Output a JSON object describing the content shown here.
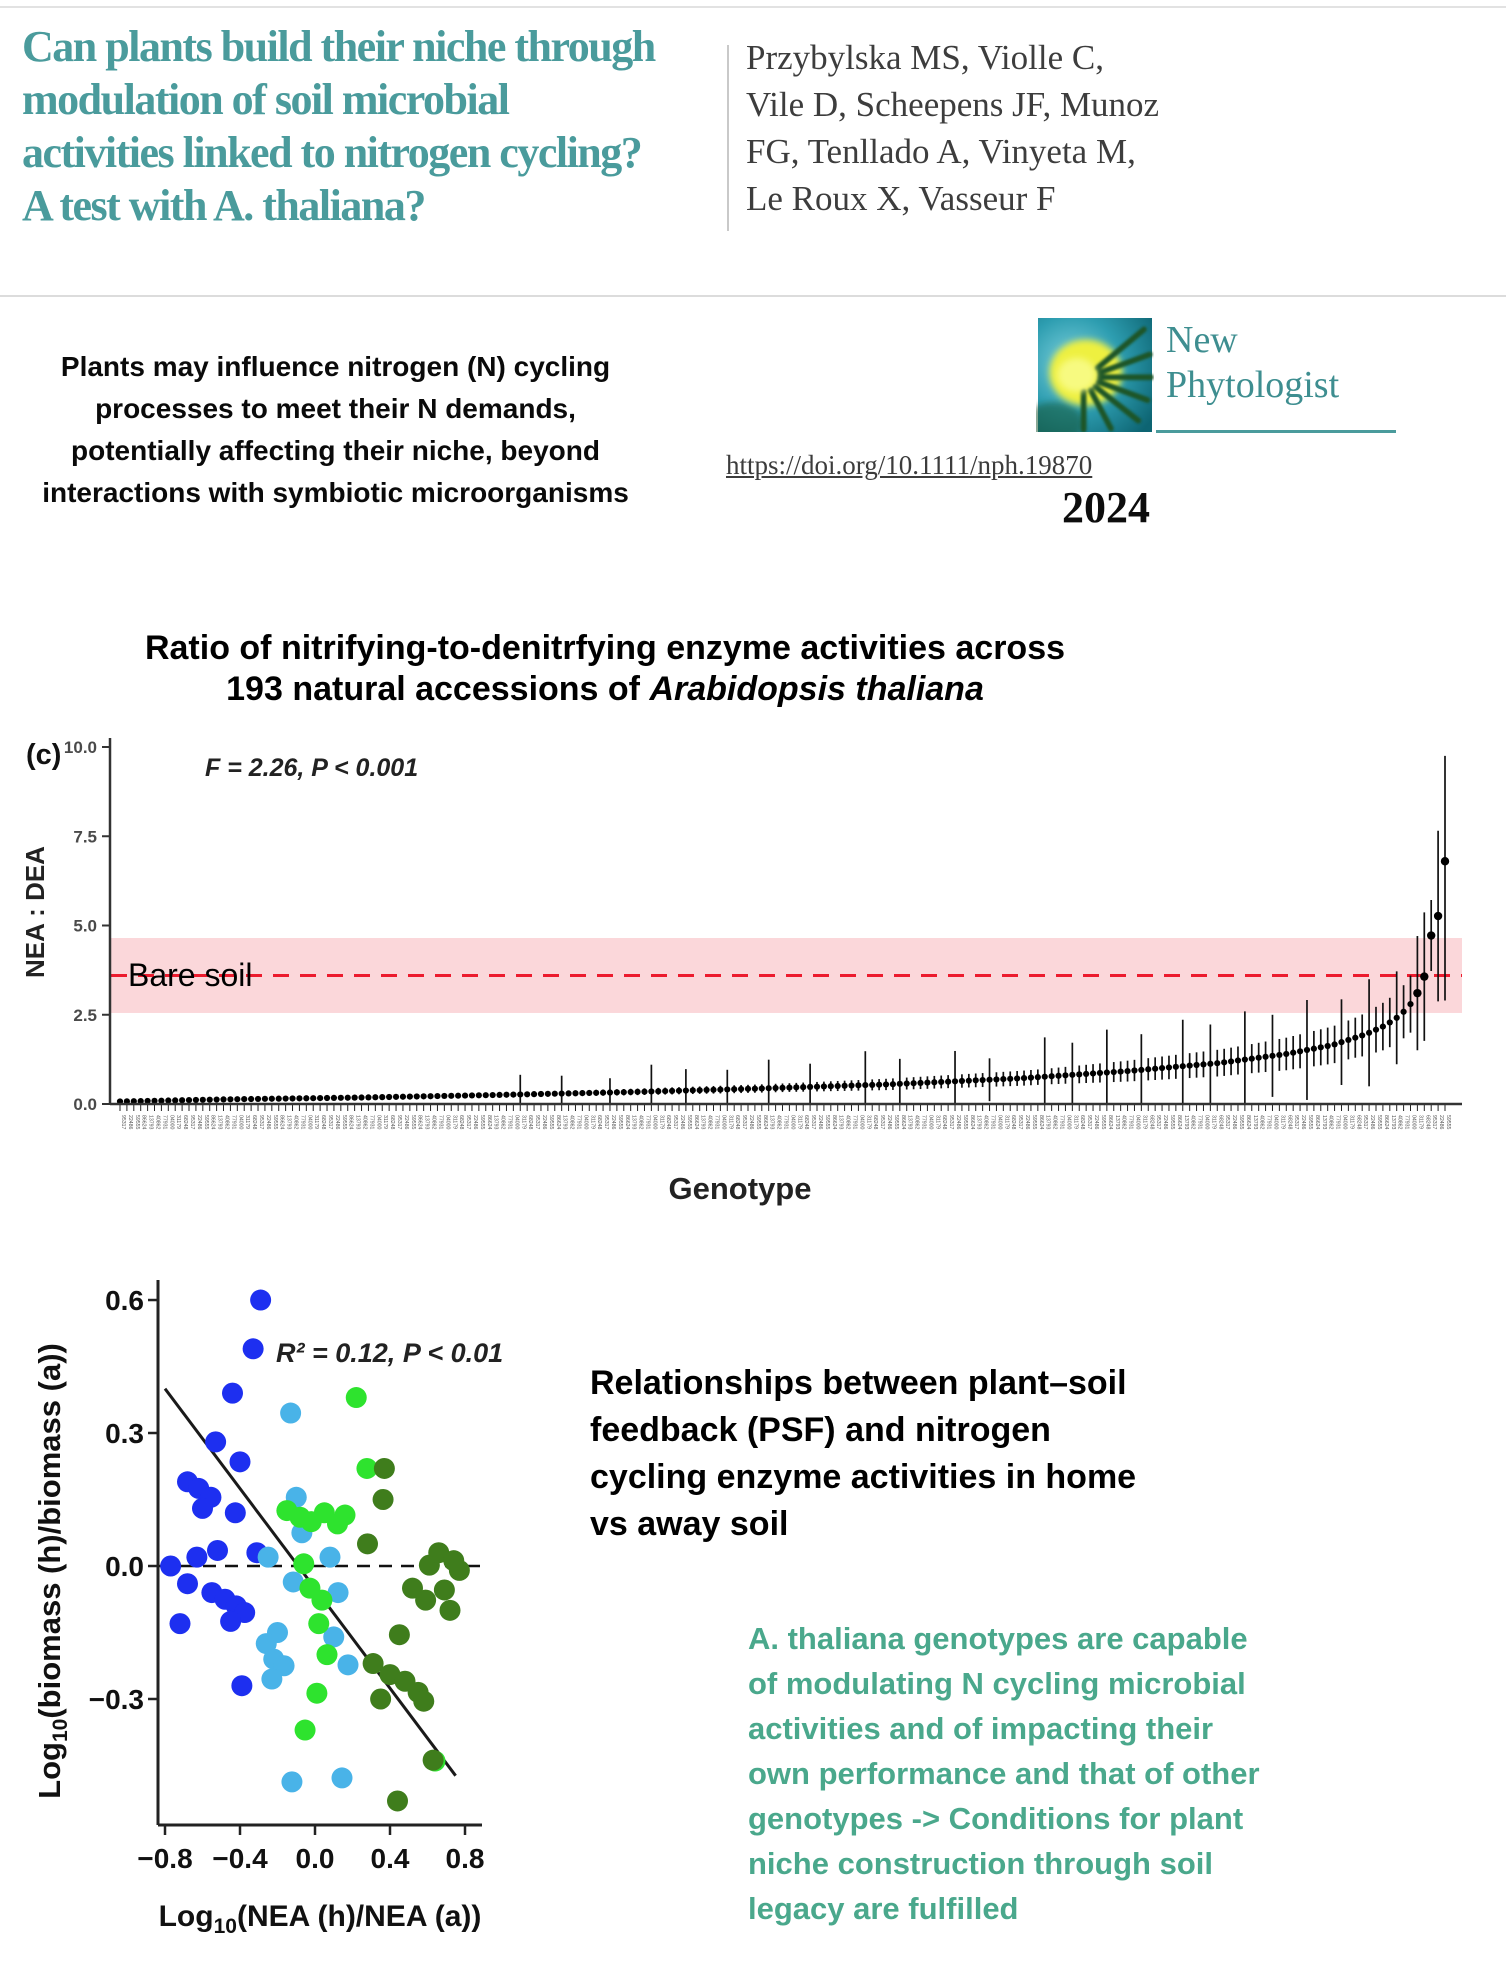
{
  "header": {
    "title_lines": [
      "Can plants build their niche through",
      "modulation of soil microbial",
      "activities linked to nitrogen cycling?",
      "A test with A. thaliana?"
    ],
    "title_color": "#4a9b9c",
    "author_lines": [
      "Przybylska MS, Violle C,",
      "Vile D, Scheepens JF, Munoz",
      "FG, Tenllado A, Vinyeta M,",
      "Le Roux X, Vasseur F"
    ]
  },
  "summary": {
    "lines": [
      "Plants may influence nitrogen (N) cycling",
      "processes to meet their N demands,",
      "potentially affecting their niche, beyond",
      "interactions with symbiotic microorganisms"
    ]
  },
  "journal": {
    "name_line1": "New",
    "name_line2": "Phytologist",
    "doi": "https://doi.org/10.1111/nph.19870",
    "year": "2024",
    "accent_color": "#3e8e90"
  },
  "right_text": {
    "heading_lines": [
      "Relationships between plant–soil",
      "feedback (PSF) and nitrogen",
      "cycling enzyme activities in home",
      "vs away soil"
    ]
  },
  "conclusion": {
    "color": "#4aa88c",
    "lines": [
      "A. thaliana genotypes are capable",
      "of modulating N cycling microbial",
      "activities and of impacting their",
      "own performance and that of other",
      "genotypes -> Conditions for plant",
      "niche construction through soil",
      "legacy are fulfilled"
    ]
  },
  "chart_data": [
    {
      "type": "scatter",
      "panel_label": "(c)",
      "title_line1": "Ratio of nitrifying-to-denitrfying enzyme activities across",
      "title_line2_prefix": "193 natural accessions of ",
      "title_line2_italic": "Arabidopsis thaliana",
      "stats": "F = 2.26, P < 0.001",
      "xlabel": "Genotype",
      "ylabel": "NEA : DEA",
      "ylim": [
        0,
        10
      ],
      "y_tick_values": [
        10,
        7.5,
        5,
        2.5,
        0
      ],
      "y_ticks": [
        "10.0",
        "7.5",
        "5.0",
        "2.5",
        "0.0"
      ],
      "n_points": 193,
      "x_tick_labels_note": "193 genotype ID micro-labels, illegible at this scale",
      "point_color": "#000000",
      "bare_soil": {
        "label": "Bare soil",
        "line_value": 3.6,
        "band": [
          2.55,
          4.65
        ],
        "line_color": "#ec1b2e",
        "band_color": "#fbd7da"
      },
      "value_anchors": [
        [
          0,
          0.07
        ],
        [
          0.08,
          0.13
        ],
        [
          0.18,
          0.18
        ],
        [
          0.28,
          0.25
        ],
        [
          0.38,
          0.33
        ],
        [
          0.48,
          0.43
        ],
        [
          0.58,
          0.55
        ],
        [
          0.68,
          0.72
        ],
        [
          0.76,
          0.92
        ],
        [
          0.83,
          1.15
        ],
        [
          0.88,
          1.4
        ],
        [
          0.915,
          1.65
        ],
        [
          0.94,
          1.95
        ],
        [
          0.955,
          2.2
        ],
        [
          0.965,
          2.45
        ],
        [
          0.972,
          2.7
        ],
        [
          0.978,
          3.0
        ],
        [
          0.983,
          3.45
        ],
        [
          0.9865,
          3.75
        ],
        [
          0.99,
          4.85
        ],
        [
          0.9935,
          5.05
        ],
        [
          0.9965,
          5.55
        ],
        [
          0.999,
          5.75
        ],
        [
          1,
          6.8
        ]
      ],
      "error_anchors": [
        [
          0,
          0.04
        ],
        [
          0.3,
          0.07
        ],
        [
          0.5,
          0.12
        ],
        [
          0.7,
          0.22
        ],
        [
          0.85,
          0.4
        ],
        [
          0.93,
          0.55
        ],
        [
          0.97,
          0.75
        ],
        [
          0.99,
          1.0
        ],
        [
          1,
          3.9
        ]
      ],
      "error_spikes": [
        [
          0.3,
          0.55
        ],
        [
          0.335,
          0.5
        ],
        [
          0.37,
          0.4
        ],
        [
          0.4,
          0.75
        ],
        [
          0.425,
          0.6
        ],
        [
          0.46,
          0.55
        ],
        [
          0.49,
          0.8
        ],
        [
          0.52,
          0.65
        ],
        [
          0.565,
          0.95
        ],
        [
          0.59,
          0.7
        ],
        [
          0.63,
          0.85
        ],
        [
          0.655,
          0.6
        ],
        [
          0.7,
          1.1
        ],
        [
          0.72,
          0.9
        ],
        [
          0.745,
          1.2
        ],
        [
          0.77,
          1.0
        ],
        [
          0.8,
          1.3
        ],
        [
          0.825,
          1.1
        ],
        [
          0.85,
          1.35
        ],
        [
          0.87,
          1.15
        ],
        [
          0.895,
          1.4
        ],
        [
          0.92,
          1.2
        ],
        [
          0.945,
          1.5
        ],
        [
          0.965,
          1.3
        ],
        [
          0.978,
          1.6
        ],
        [
          0.9865,
          1.8
        ],
        [
          1.0,
          3.9
        ]
      ]
    },
    {
      "type": "scatter",
      "stats": "R² = 0.12, P < 0.01",
      "xlabel_parts": [
        "Log",
        "10",
        "(NEA (h)/NEA (a))"
      ],
      "ylabel_parts": [
        "Log",
        "10",
        "(biomass (h)/biomass (a))"
      ],
      "xlim": [
        -0.95,
        0.9
      ],
      "ylim": [
        -0.58,
        0.64
      ],
      "x_tick_values": [
        -0.8,
        -0.4,
        0,
        0.4,
        0.8
      ],
      "x_ticks": [
        "−0.8",
        "−0.4",
        "0.0",
        "0.4",
        "0.8"
      ],
      "y_tick_values": [
        0.6,
        0.3,
        0,
        -0.3
      ],
      "y_ticks": [
        "0.6",
        "0.3",
        "0.0",
        "−0.3"
      ],
      "zero_line": 0,
      "regression_line": {
        "x1": -0.8,
        "y1": 0.4,
        "x2": 0.75,
        "y2": -0.473
      },
      "colors": {
        "blue": "#1d2ff0",
        "lightblue": "#49b3e8",
        "green": "#2ee32e",
        "darkgreen": "#3f7d1c"
      },
      "points": [
        {
          "x": -0.29,
          "y": 0.6,
          "c": "blue"
        },
        {
          "x": -0.33,
          "y": 0.49,
          "c": "blue"
        },
        {
          "x": -0.44,
          "y": 0.39,
          "c": "blue"
        },
        {
          "x": -0.53,
          "y": 0.28,
          "c": "blue"
        },
        {
          "x": -0.4,
          "y": 0.235,
          "c": "blue"
        },
        {
          "x": -0.68,
          "y": 0.19,
          "c": "blue"
        },
        {
          "x": -0.62,
          "y": 0.175,
          "c": "blue"
        },
        {
          "x": -0.555,
          "y": 0.155,
          "c": "blue"
        },
        {
          "x": -0.6,
          "y": 0.13,
          "c": "blue"
        },
        {
          "x": -0.425,
          "y": 0.12,
          "c": "blue"
        },
        {
          "x": -0.52,
          "y": 0.035,
          "c": "blue"
        },
        {
          "x": -0.63,
          "y": 0.02,
          "c": "blue"
        },
        {
          "x": -0.77,
          "y": 0.0,
          "c": "blue"
        },
        {
          "x": -0.68,
          "y": -0.04,
          "c": "blue"
        },
        {
          "x": -0.55,
          "y": -0.06,
          "c": "blue"
        },
        {
          "x": -0.48,
          "y": -0.075,
          "c": "blue"
        },
        {
          "x": -0.42,
          "y": -0.09,
          "c": "blue"
        },
        {
          "x": -0.375,
          "y": -0.105,
          "c": "blue"
        },
        {
          "x": -0.45,
          "y": -0.125,
          "c": "blue"
        },
        {
          "x": -0.72,
          "y": -0.13,
          "c": "blue"
        },
        {
          "x": -0.39,
          "y": -0.27,
          "c": "blue"
        },
        {
          "x": -0.31,
          "y": 0.03,
          "c": "blue"
        },
        {
          "x": -0.13,
          "y": 0.345,
          "c": "lightblue"
        },
        {
          "x": -0.1,
          "y": 0.155,
          "c": "lightblue"
        },
        {
          "x": -0.07,
          "y": 0.075,
          "c": "lightblue"
        },
        {
          "x": -0.25,
          "y": 0.02,
          "c": "lightblue"
        },
        {
          "x": -0.116,
          "y": -0.036,
          "c": "lightblue"
        },
        {
          "x": 0.08,
          "y": 0.02,
          "c": "lightblue"
        },
        {
          "x": 0.123,
          "y": -0.06,
          "c": "lightblue"
        },
        {
          "x": -0.2,
          "y": -0.15,
          "c": "lightblue"
        },
        {
          "x": -0.26,
          "y": -0.175,
          "c": "lightblue"
        },
        {
          "x": -0.22,
          "y": -0.21,
          "c": "lightblue"
        },
        {
          "x": -0.165,
          "y": -0.225,
          "c": "lightblue"
        },
        {
          "x": -0.23,
          "y": -0.255,
          "c": "lightblue"
        },
        {
          "x": 0.176,
          "y": -0.223,
          "c": "lightblue"
        },
        {
          "x": -0.123,
          "y": -0.487,
          "c": "lightblue"
        },
        {
          "x": 0.144,
          "y": -0.478,
          "c": "lightblue"
        },
        {
          "x": 0.1,
          "y": -0.16,
          "c": "lightblue"
        },
        {
          "x": 0.22,
          "y": 0.38,
          "c": "green"
        },
        {
          "x": 0.277,
          "y": 0.22,
          "c": "green"
        },
        {
          "x": -0.15,
          "y": 0.125,
          "c": "green"
        },
        {
          "x": -0.08,
          "y": 0.11,
          "c": "green"
        },
        {
          "x": -0.02,
          "y": 0.1,
          "c": "green"
        },
        {
          "x": 0.05,
          "y": 0.12,
          "c": "green"
        },
        {
          "x": 0.12,
          "y": 0.095,
          "c": "green"
        },
        {
          "x": -0.027,
          "y": -0.05,
          "c": "green"
        },
        {
          "x": 0.037,
          "y": -0.077,
          "c": "green"
        },
        {
          "x": 0.064,
          "y": -0.2,
          "c": "green"
        },
        {
          "x": 0.01,
          "y": -0.287,
          "c": "green"
        },
        {
          "x": -0.053,
          "y": -0.37,
          "c": "green"
        },
        {
          "x": -0.06,
          "y": 0.005,
          "c": "green"
        },
        {
          "x": 0.02,
          "y": -0.13,
          "c": "green"
        },
        {
          "x": 0.64,
          "y": -0.44,
          "c": "green"
        },
        {
          "x": 0.16,
          "y": 0.115,
          "c": "green"
        },
        {
          "x": 0.363,
          "y": 0.15,
          "c": "darkgreen"
        },
        {
          "x": 0.28,
          "y": 0.05,
          "c": "darkgreen"
        },
        {
          "x": 0.61,
          "y": 0.002,
          "c": "darkgreen"
        },
        {
          "x": 0.69,
          "y": -0.054,
          "c": "darkgreen"
        },
        {
          "x": 0.77,
          "y": -0.01,
          "c": "darkgreen"
        },
        {
          "x": 0.72,
          "y": -0.1,
          "c": "darkgreen"
        },
        {
          "x": 0.59,
          "y": -0.077,
          "c": "darkgreen"
        },
        {
          "x": 0.31,
          "y": -0.22,
          "c": "darkgreen"
        },
        {
          "x": 0.4,
          "y": -0.245,
          "c": "darkgreen"
        },
        {
          "x": 0.48,
          "y": -0.26,
          "c": "darkgreen"
        },
        {
          "x": 0.55,
          "y": -0.285,
          "c": "darkgreen"
        },
        {
          "x": 0.58,
          "y": -0.305,
          "c": "darkgreen"
        },
        {
          "x": 0.63,
          "y": -0.438,
          "c": "darkgreen"
        },
        {
          "x": 0.44,
          "y": -0.53,
          "c": "darkgreen"
        },
        {
          "x": 0.35,
          "y": -0.3,
          "c": "darkgreen"
        },
        {
          "x": 0.66,
          "y": 0.03,
          "c": "darkgreen"
        },
        {
          "x": 0.74,
          "y": 0.012,
          "c": "darkgreen"
        },
        {
          "x": 0.52,
          "y": -0.05,
          "c": "darkgreen"
        },
        {
          "x": 0.37,
          "y": 0.22,
          "c": "darkgreen"
        },
        {
          "x": 0.45,
          "y": -0.155,
          "c": "darkgreen"
        }
      ]
    }
  ]
}
